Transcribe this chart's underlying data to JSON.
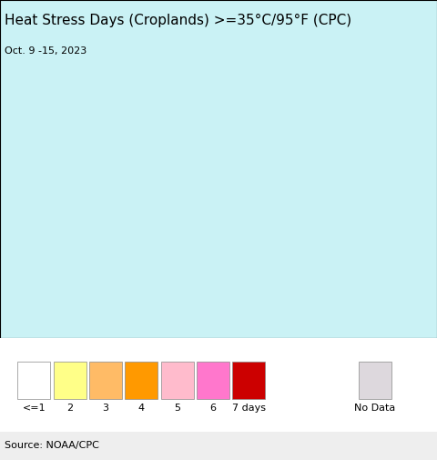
{
  "title": "Heat Stress Days (Croplands) >=35°C/95°F (CPC)",
  "subtitle": "Oct. 9 -15, 2023",
  "background_color": "#caf2f5",
  "land_color": "#ede8ed",
  "border_color": "#888888",
  "country_outline_color": "#000000",
  "legend_labels": [
    "<=1",
    "2",
    "3",
    "4",
    "5",
    "6",
    "7 days",
    "No Data"
  ],
  "legend_colors": [
    "#ffffff",
    "#ffff88",
    "#ffbb66",
    "#ff9900",
    "#ffbbcc",
    "#ff77cc",
    "#cc0000",
    "#ddd8dd"
  ],
  "source_text": "Source: NOAA/CPC",
  "map_extent": [
    79.3,
    82.5,
    5.5,
    10.3
  ],
  "figsize": [
    4.8,
    5.05
  ],
  "dpi": 100,
  "title_fontsize": 11,
  "subtitle_fontsize": 8,
  "source_fontsize": 8,
  "legend_fontsize": 8
}
